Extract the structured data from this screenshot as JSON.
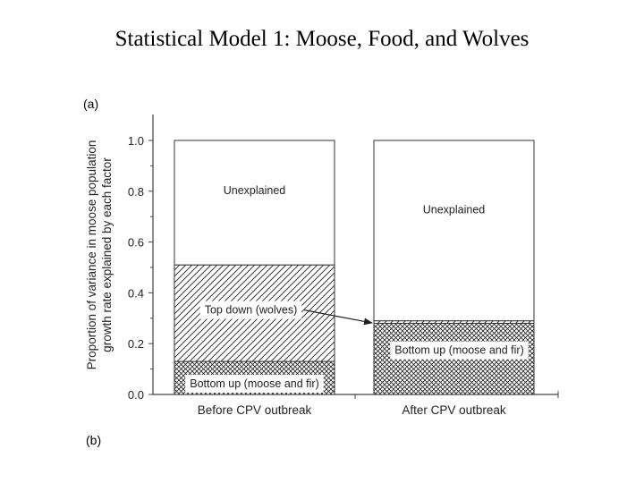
{
  "slide": {
    "title": "Statistical Model 1: Moose, Food, and Wolves"
  },
  "panel_labels": {
    "a": "(a)",
    "b": "(b)"
  },
  "chart_data": {
    "type": "bar",
    "stacked": true,
    "categories": [
      "Before CPV outbreak",
      "After CPV outbreak"
    ],
    "series": [
      {
        "name": "Bottom up (moose and fir)",
        "values": [
          0.13,
          0.28
        ]
      },
      {
        "name": "Top down (wolves)",
        "values": [
          0.38,
          0.01
        ]
      },
      {
        "name": "Unexplained",
        "values": [
          0.49,
          0.71
        ]
      }
    ],
    "ylabel": "Proportion of variance in moose population growth rate explained by each factor",
    "ylabel_lines": [
      "Proportion of variance in moose population",
      "growth rate explained by each factor"
    ],
    "ylim": [
      0,
      1.0
    ],
    "yticks": [
      0.0,
      0.2,
      0.4,
      0.6,
      0.8,
      1.0
    ],
    "ytick_labels": [
      "0.0",
      "0.2",
      "0.4",
      "0.6",
      "0.8",
      "1.0"
    ],
    "annotations": {
      "before_unexplained": "Unexplained",
      "before_topdown": "Top down (wolves)",
      "before_bottomup": "Bottom up (moose and fir)",
      "after_unexplained": "Unexplained",
      "after_bottomup": "Bottom up (moose and fir)"
    },
    "arrow": {
      "from": "Top down (wolves)",
      "to": "After CPV outbreak top down segment"
    },
    "grid": false,
    "legend": "none"
  }
}
